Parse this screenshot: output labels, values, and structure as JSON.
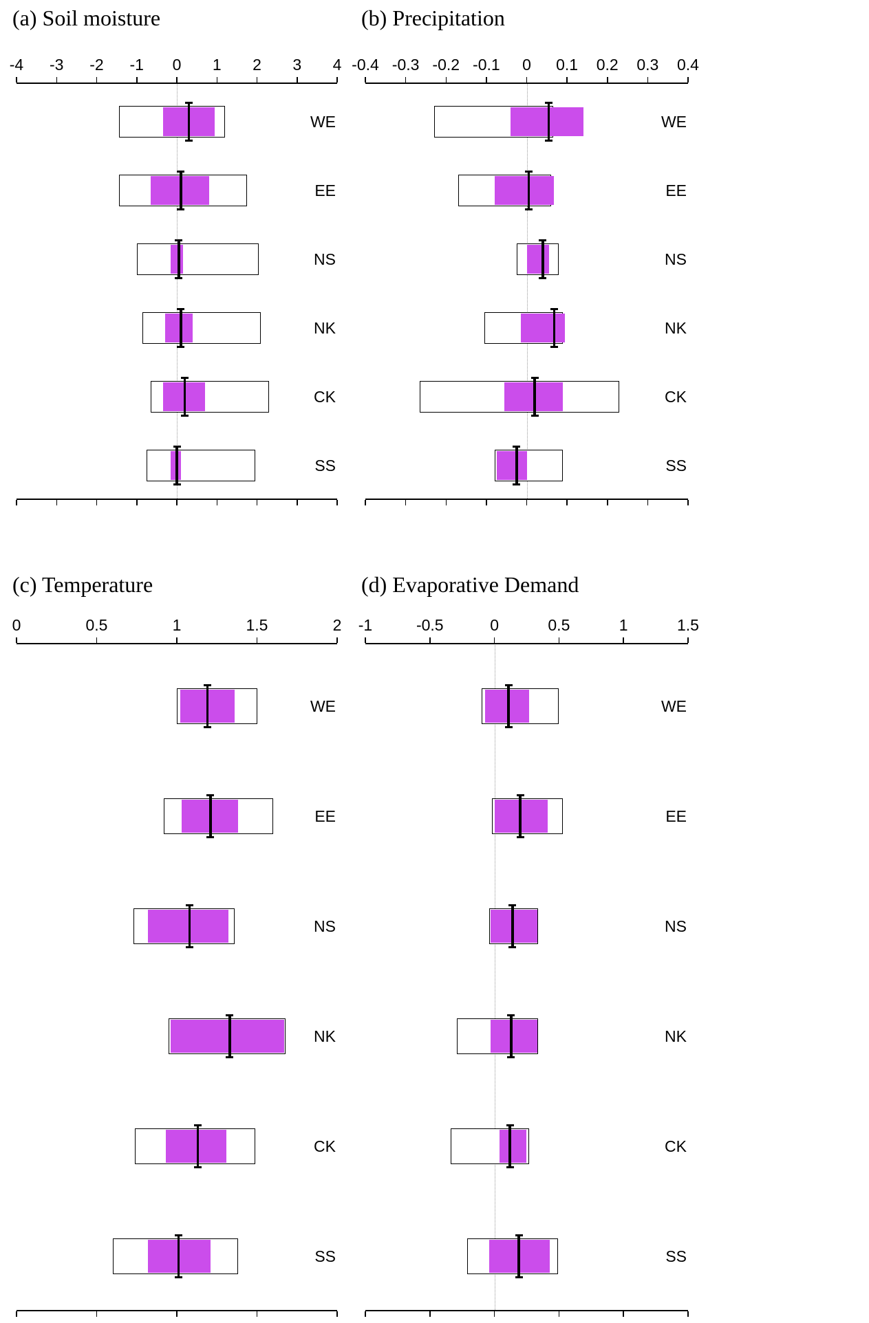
{
  "colors": {
    "background": "#ffffff",
    "box_fill_magenta": "#cb4deb",
    "box_edge": "#000000",
    "median": "#000000",
    "zero_line": "#999999",
    "axis": "#000000"
  },
  "chart_data": [
    {
      "type": "bar",
      "subtype": "horizontal-range-box",
      "title": "(a) Soil moisture",
      "categories": [
        "WE",
        "EE",
        "NS",
        "NK",
        "CK",
        "SS"
      ],
      "xlim": [
        -4,
        4
      ],
      "tick_values": [
        -4,
        -3,
        -2,
        -1,
        0,
        1,
        2,
        3,
        4
      ],
      "tick_labels": [
        "-4",
        "-3",
        "-2",
        "-1",
        "0",
        "1",
        "2",
        "3",
        "4"
      ],
      "zero_line": true,
      "legend": "none",
      "series": [
        {
          "name": "outer-range-white-box",
          "ranges": [
            [
              -1.45,
              1.2
            ],
            [
              -1.45,
              1.75
            ],
            [
              -1.0,
              2.05
            ],
            [
              -0.85,
              2.1
            ],
            [
              -0.65,
              2.3
            ],
            [
              -0.75,
              1.95
            ]
          ]
        },
        {
          "name": "inner-range-magenta-box",
          "ranges": [
            [
              -0.35,
              0.95
            ],
            [
              -0.65,
              0.8
            ],
            [
              -0.15,
              0.15
            ],
            [
              -0.3,
              0.4
            ],
            [
              -0.35,
              0.7
            ],
            [
              -0.15,
              0.1
            ]
          ]
        },
        {
          "name": "median",
          "values": [
            0.3,
            0.1,
            0.05,
            0.1,
            0.2,
            0.0
          ]
        }
      ]
    },
    {
      "type": "bar",
      "subtype": "horizontal-range-box",
      "title": "(b) Precipitation",
      "categories": [
        "WE",
        "EE",
        "NS",
        "NK",
        "CK",
        "SS"
      ],
      "xlim": [
        -0.4,
        0.4
      ],
      "tick_values": [
        -0.4,
        -0.3,
        -0.2,
        -0.1,
        0,
        0.1,
        0.2,
        0.3,
        0.4
      ],
      "tick_labels": [
        "-0.4",
        "-0.3",
        "-0.2",
        "-0.1",
        "0",
        "0.1",
        "0.2",
        "0.3",
        "0.4"
      ],
      "zero_line": true,
      "legend": "none",
      "series": [
        {
          "name": "outer-range-white-box",
          "ranges": [
            [
              -0.23,
              0.065
            ],
            [
              -0.17,
              0.06
            ],
            [
              -0.025,
              0.08
            ],
            [
              -0.105,
              0.09
            ],
            [
              -0.265,
              0.23
            ],
            [
              -0.08,
              0.09
            ]
          ]
        },
        {
          "name": "inner-range-magenta-box",
          "ranges": [
            [
              -0.04,
              0.14
            ],
            [
              -0.08,
              0.067
            ],
            [
              0.0,
              0.055
            ],
            [
              -0.015,
              0.095
            ],
            [
              -0.055,
              0.09
            ],
            [
              -0.075,
              0.0
            ]
          ]
        },
        {
          "name": "median",
          "values": [
            0.055,
            0.005,
            0.04,
            0.068,
            0.02,
            -0.025
          ]
        }
      ]
    },
    {
      "type": "bar",
      "subtype": "horizontal-range-box",
      "title": "(c) Temperature",
      "categories": [
        "WE",
        "EE",
        "NS",
        "NK",
        "CK",
        "SS"
      ],
      "xlim": [
        0,
        2
      ],
      "tick_values": [
        0,
        0.5,
        1,
        1.5,
        2
      ],
      "tick_labels": [
        "0",
        "0.5",
        "1",
        "1.5",
        "2"
      ],
      "zero_line": false,
      "legend": "none",
      "series": [
        {
          "name": "outer-range-white-box",
          "ranges": [
            [
              1.0,
              1.5
            ],
            [
              0.92,
              1.6
            ],
            [
              0.73,
              1.36
            ],
            [
              0.95,
              1.68
            ],
            [
              0.74,
              1.49
            ],
            [
              0.6,
              1.38
            ]
          ]
        },
        {
          "name": "inner-range-magenta-box",
          "ranges": [
            [
              1.02,
              1.36
            ],
            [
              1.03,
              1.38
            ],
            [
              0.82,
              1.32
            ],
            [
              0.96,
              1.67
            ],
            [
              0.93,
              1.31
            ],
            [
              0.82,
              1.21
            ]
          ]
        },
        {
          "name": "median",
          "values": [
            1.19,
            1.21,
            1.08,
            1.33,
            1.13,
            1.01
          ]
        }
      ]
    },
    {
      "type": "bar",
      "subtype": "horizontal-range-box",
      "title": "(d) Evaporative Demand",
      "categories": [
        "WE",
        "EE",
        "NS",
        "NK",
        "CK",
        "SS"
      ],
      "xlim": [
        -1,
        1.5
      ],
      "tick_values": [
        -1,
        -0.5,
        0,
        0.5,
        1,
        1.5
      ],
      "tick_labels": [
        "-1",
        "-0.5",
        "0",
        "0.5",
        "1",
        "1.5"
      ],
      "zero_line": true,
      "legend": "none",
      "series": [
        {
          "name": "outer-range-white-box",
          "ranges": [
            [
              -0.1,
              0.5
            ],
            [
              -0.02,
              0.53
            ],
            [
              -0.04,
              0.34
            ],
            [
              -0.29,
              0.34
            ],
            [
              -0.34,
              0.27
            ],
            [
              -0.21,
              0.49
            ]
          ]
        },
        {
          "name": "inner-range-magenta-box",
          "ranges": [
            [
              -0.07,
              0.27
            ],
            [
              0.0,
              0.41
            ],
            [
              -0.03,
              0.33
            ],
            [
              -0.03,
              0.33
            ],
            [
              0.04,
              0.25
            ],
            [
              -0.04,
              0.43
            ]
          ]
        },
        {
          "name": "median",
          "values": [
            0.11,
            0.2,
            0.14,
            0.13,
            0.12,
            0.19
          ]
        }
      ]
    }
  ]
}
